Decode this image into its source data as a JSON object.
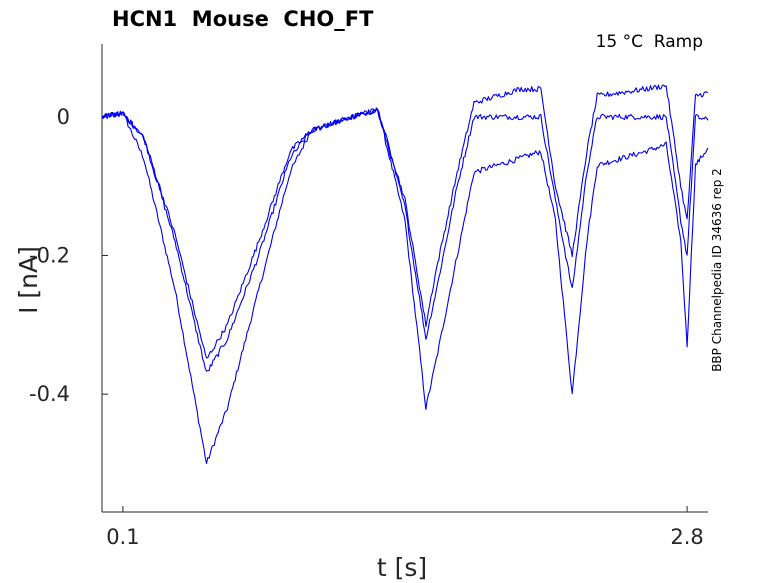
{
  "chart_data": {
    "type": "line",
    "title": "HCN1  Mouse  CHO_FT",
    "annotation": "15 °C  Ramp",
    "side_label": "BBP Channelpedia ID 34636 rep 2",
    "xlabel": "t [s]",
    "ylabel": "I [nA]",
    "xlim": [
      0.0,
      2.9
    ],
    "ylim": [
      -0.57,
      0.105
    ],
    "x_ticks": [
      0.1,
      2.8
    ],
    "x_tick_labels": [
      "0.1",
      "2.8"
    ],
    "y_ticks": [
      0,
      -0.2,
      -0.4
    ],
    "y_tick_labels": [
      "0",
      "-0.2",
      "-0.4"
    ],
    "grid": false,
    "series": [
      {
        "color": "#0000ee",
        "points": [
          [
            0,
            0
          ],
          [
            0.1,
            0.005
          ],
          [
            0.2,
            -0.06
          ],
          [
            0.35,
            -0.25
          ],
          [
            0.5,
            -0.5
          ],
          [
            0.6,
            -0.42
          ],
          [
            0.75,
            -0.25
          ],
          [
            0.9,
            -0.08
          ],
          [
            1.0,
            -0.02
          ],
          [
            1.2,
            0.0
          ],
          [
            1.32,
            0.01
          ],
          [
            1.45,
            -0.15
          ],
          [
            1.55,
            -0.42
          ],
          [
            1.6,
            -0.35
          ],
          [
            1.7,
            -0.2
          ],
          [
            1.78,
            -0.08
          ],
          [
            2.0,
            -0.06
          ],
          [
            2.1,
            -0.05
          ],
          [
            2.17,
            -0.15
          ],
          [
            2.25,
            -0.4
          ],
          [
            2.32,
            -0.18
          ],
          [
            2.37,
            -0.07
          ],
          [
            2.6,
            -0.05
          ],
          [
            2.7,
            -0.04
          ],
          [
            2.77,
            -0.18
          ],
          [
            2.8,
            -0.33
          ],
          [
            2.84,
            -0.07
          ],
          [
            2.9,
            -0.045
          ]
        ]
      },
      {
        "color": "#0000ee",
        "points": [
          [
            0,
            0
          ],
          [
            0.1,
            0.005
          ],
          [
            0.2,
            -0.03
          ],
          [
            0.35,
            -0.18
          ],
          [
            0.5,
            -0.37
          ],
          [
            0.6,
            -0.32
          ],
          [
            0.75,
            -0.2
          ],
          [
            0.9,
            -0.06
          ],
          [
            1.0,
            -0.02
          ],
          [
            1.2,
            0.0
          ],
          [
            1.32,
            0.01
          ],
          [
            1.45,
            -0.13
          ],
          [
            1.55,
            -0.32
          ],
          [
            1.6,
            -0.25
          ],
          [
            1.7,
            -0.1
          ],
          [
            1.78,
            0.0
          ],
          [
            2.0,
            0.0
          ],
          [
            2.1,
            0.0
          ],
          [
            2.17,
            -0.12
          ],
          [
            2.25,
            -0.25
          ],
          [
            2.32,
            -0.08
          ],
          [
            2.37,
            0.0
          ],
          [
            2.6,
            0.0
          ],
          [
            2.7,
            0.0
          ],
          [
            2.77,
            -0.15
          ],
          [
            2.8,
            -0.2
          ],
          [
            2.84,
            0.0
          ],
          [
            2.9,
            -0.005
          ]
        ]
      },
      {
        "color": "#0000ee",
        "points": [
          [
            0,
            0
          ],
          [
            0.1,
            0.005
          ],
          [
            0.2,
            -0.03
          ],
          [
            0.35,
            -0.17
          ],
          [
            0.5,
            -0.35
          ],
          [
            0.6,
            -0.3
          ],
          [
            0.75,
            -0.18
          ],
          [
            0.9,
            -0.05
          ],
          [
            1.0,
            -0.02
          ],
          [
            1.2,
            0.0
          ],
          [
            1.32,
            0.01
          ],
          [
            1.45,
            -0.12
          ],
          [
            1.55,
            -0.3
          ],
          [
            1.6,
            -0.22
          ],
          [
            1.7,
            -0.08
          ],
          [
            1.78,
            0.02
          ],
          [
            2.0,
            0.04
          ],
          [
            2.1,
            0.04
          ],
          [
            2.17,
            -0.1
          ],
          [
            2.25,
            -0.2
          ],
          [
            2.32,
            -0.05
          ],
          [
            2.37,
            0.03
          ],
          [
            2.6,
            0.04
          ],
          [
            2.7,
            0.045
          ],
          [
            2.77,
            -0.1
          ],
          [
            2.8,
            -0.15
          ],
          [
            2.84,
            0.03
          ],
          [
            2.9,
            0.035
          ]
        ]
      }
    ]
  }
}
